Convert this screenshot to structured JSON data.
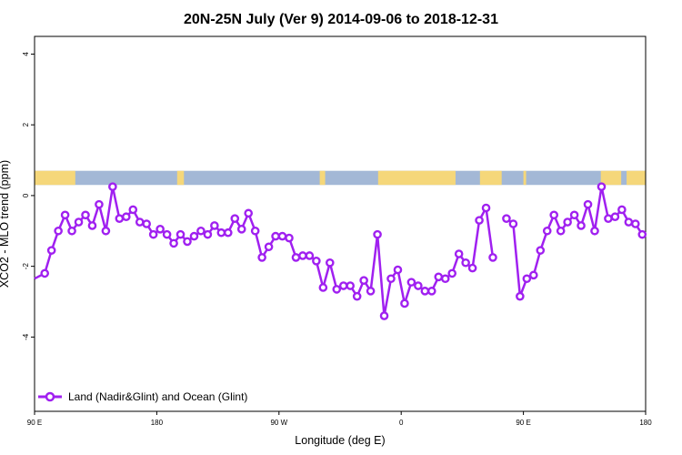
{
  "chart_data": {
    "type": "line",
    "title": "20N-25N July (Ver 9)   2014-09-06 to 2018-12-31",
    "xlabel": "Longitude (deg E)",
    "ylabel": "XCO2 - MLO trend (ppm)",
    "x_tick_labels": [
      "90 E",
      "180",
      "90 W",
      "0",
      "90 E",
      "180"
    ],
    "x_tick_values": [
      90,
      180,
      270,
      360,
      450,
      540
    ],
    "xlim": [
      90,
      540
    ],
    "y_tick_labels": [
      "4",
      "2",
      "0",
      "-2",
      "-4"
    ],
    "y_tick_values": [
      4,
      2,
      0,
      -2,
      -4
    ],
    "ylim": [
      -6.1,
      4.5
    ],
    "grid": false,
    "legend_position": "bottom-left",
    "land_band": {
      "ymin": 0.3,
      "ymax": 0.7,
      "ocean_color": "#a3b8d6",
      "land_color": "#f5d77a",
      "land_segments": [
        [
          90,
          120
        ],
        [
          195,
          200
        ],
        [
          300,
          304
        ],
        [
          343,
          400
        ],
        [
          418,
          434
        ],
        [
          450,
          452
        ],
        [
          507,
          522
        ],
        [
          526,
          540
        ]
      ]
    },
    "series": [
      {
        "name": "Land (Nadir&Glint) and Ocean (Glint)",
        "color": "#a020f0",
        "x": [
          90,
          97.5,
          102.5,
          107.5,
          112.5,
          117.5,
          122.5,
          127.5,
          132.5,
          137.5,
          142.5,
          147.5,
          152.5,
          157.5,
          162.5,
          167.5,
          172.5,
          177.5,
          182.5,
          187.5,
          192.5,
          197.5,
          202.5,
          207.5,
          212.5,
          217.5,
          222.5,
          227.5,
          232.5,
          237.5,
          242.5,
          247.5,
          252.5,
          257.5,
          262.5,
          267.5,
          272.5,
          277.5,
          282.5,
          287.5,
          292.5,
          297.5,
          302.5,
          307.5,
          312.5,
          317.5,
          322.5,
          327.5,
          332.5,
          337.5,
          342.5,
          347.5,
          352.5,
          357.5,
          362.5,
          367.5,
          372.5,
          377.5,
          382.5,
          387.5,
          392.5,
          397.5,
          402.5,
          407.5,
          412.5,
          417.5,
          422.5,
          427.5,
          432.5
        ],
        "y": [
          -2.35,
          -2.2,
          -1.55,
          -1.0,
          -0.55,
          -1.0,
          -0.75,
          -0.55,
          -0.85,
          -0.25,
          -1.0,
          0.25,
          -0.65,
          -0.6,
          -0.4,
          -0.75,
          -0.8,
          -1.1,
          -0.95,
          -1.1,
          -1.35,
          -1.1,
          -1.3,
          -1.15,
          -1.0,
          -1.1,
          -0.85,
          -1.05,
          -1.05,
          -0.65,
          -0.95,
          -0.5,
          -1.0,
          -1.75,
          -1.45,
          -1.15,
          -1.15,
          -1.2,
          -1.75,
          -1.7,
          -1.7,
          -1.85,
          -2.6,
          -1.9,
          -2.65,
          -2.55,
          -2.55,
          -2.85,
          -2.4,
          -2.7,
          -1.1,
          -3.4,
          -2.35,
          -2.1,
          -3.05,
          -2.45,
          -2.55,
          -2.7,
          -2.7,
          -2.3,
          -2.35,
          -2.2,
          -1.65,
          -1.9,
          -2.05,
          -0.7,
          -0.35,
          -1.75,
          null
        ]
      },
      {
        "name": "",
        "color": "#a020f0",
        "x": [
          437.5,
          442.5,
          447.5,
          452.5,
          457.5,
          462.5,
          467.5,
          472.5,
          477.5,
          482.5,
          487.5,
          492.5,
          497.5,
          502.5,
          507.5,
          512.5,
          517.5,
          522.5,
          527.5,
          532.5,
          537.5,
          540
        ],
        "y": [
          -0.65,
          -0.8,
          -2.85,
          -2.35,
          -2.25,
          -1.55,
          -1.0,
          -0.55,
          -1.0,
          -0.75,
          -0.55,
          -0.85,
          -0.25,
          -1.0,
          0.25,
          -0.65,
          -0.6,
          -0.4,
          -0.75,
          -0.8,
          -1.1,
          -1.1
        ]
      }
    ]
  }
}
